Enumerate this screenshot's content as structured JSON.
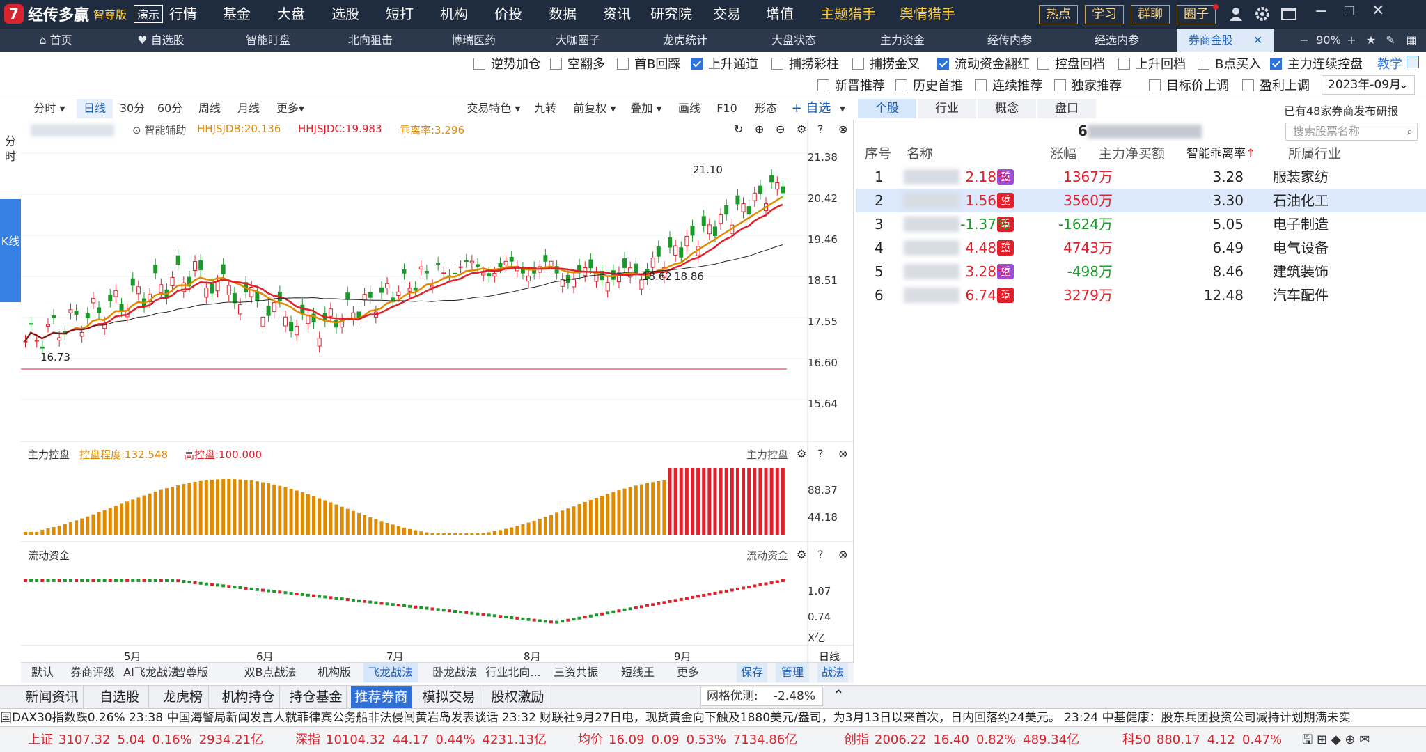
{
  "app": {
    "name": "经传多赢",
    "edition": "智尊版",
    "demo": "演示"
  },
  "menu": [
    "行情",
    "基金",
    "大盘",
    "选股",
    "短打",
    "机构",
    "价投",
    "数据",
    "资讯",
    "研究院",
    "交易",
    "增值"
  ],
  "menu_hl": [
    "主题猎手",
    "舆情猎手"
  ],
  "top_buttons": [
    "热点",
    "学习",
    "群聊",
    "圈子"
  ],
  "tabs": [
    "首页",
    "自选股",
    "智能盯盘",
    "北向狙击",
    "博瑞医药",
    "大咖圈子",
    "龙虎统计",
    "大盘状态",
    "主力资金",
    "经传内参",
    "经选内参",
    "券商金股"
  ],
  "zoom": "90%",
  "filters_row1": [
    {
      "label": "逆势加仓",
      "on": false
    },
    {
      "label": "空翻多",
      "on": false
    },
    {
      "label": "首B回踩",
      "on": false
    },
    {
      "label": "上升通道",
      "on": true
    },
    {
      "label": "捕捞彩柱",
      "on": false
    },
    {
      "label": "捕捞金叉",
      "on": false
    },
    {
      "label": "流动资金翻红",
      "on": true
    },
    {
      "label": "控盘回档",
      "on": false
    },
    {
      "label": "上升回档",
      "on": false
    },
    {
      "label": "B点买入",
      "on": false
    },
    {
      "label": "主力连续控盘",
      "on": true
    }
  ],
  "teach": "教学",
  "filters_row2": [
    {
      "label": "新晋推荐",
      "on": false
    },
    {
      "label": "历史首推",
      "on": false
    },
    {
      "label": "连续推荐",
      "on": false
    },
    {
      "label": "独家推荐",
      "on": false
    },
    {
      "label": "目标价上调",
      "on": false
    },
    {
      "label": "盈利上调",
      "on": false
    }
  ],
  "month_select": "2023年-09月",
  "chart_toolbar": [
    "分时",
    "日线",
    "30分",
    "60分",
    "周线",
    "月线",
    "更多",
    "交易特色",
    "九转",
    "前复权",
    "叠加",
    "画线",
    "F10",
    "形态"
  ],
  "add_watch": "+ 自选",
  "side_tabs": [
    "分时",
    "K线"
  ],
  "indicator": {
    "assist": "智能辅助",
    "db": "HHJSJDB:20.136",
    "dc": "HHJSJDC:19.983",
    "ratio": "乖离率:3.296"
  },
  "price_labels": {
    "high": "21.10",
    "low": "16.73",
    "mid_a": "18.62",
    "mid_b": "18.86"
  },
  "y_axis": [
    "21.38",
    "20.42",
    "19.46",
    "18.51",
    "17.55",
    "16.60",
    "15.64"
  ],
  "control_panel": {
    "title": "主力控盘",
    "degree": "控盘程度:132.548",
    "high": "高控盘:100.000",
    "axis": [
      "88.37",
      "44.18"
    ]
  },
  "flow_panel": {
    "title": "流动资金",
    "axis": [
      "1.07",
      "0.74"
    ],
    "unit": "X亿"
  },
  "x_axis": [
    "5月",
    "6月",
    "7月",
    "8月",
    "9月"
  ],
  "period": "日线",
  "chart_data": {
    "type": "candlestick",
    "title": "",
    "ylim": [
      15.64,
      21.38
    ],
    "x": [
      "5月",
      "6月",
      "7月",
      "8月",
      "9月"
    ],
    "annotated": {
      "high": 21.1,
      "low": 16.73
    }
  },
  "right_tabs": [
    "个股",
    "行业",
    "概念",
    "盘口"
  ],
  "report_note": "已有48家券商发布研报",
  "stock_code_prefix": "6",
  "search_placeholder": "搜索股票名称",
  "table_headers": [
    "序号",
    "名称",
    "涨幅",
    "主力净买额",
    "智能乖离率",
    "所属行业"
  ],
  "rows": [
    {
      "n": "1",
      "chg": "2.18%",
      "net": "1367万",
      "ratio": "3.28",
      "ind": "服装家纺",
      "tag": "重",
      "tagc": "#9a4fd6",
      "up": true,
      "netup": true
    },
    {
      "n": "2",
      "chg": "1.56%",
      "net": "3560万",
      "ratio": "3.30",
      "ind": "石油化工",
      "tag": "重",
      "tagc": "#e0202a",
      "up": true,
      "netup": true
    },
    {
      "n": "3",
      "chg": "-1.37%",
      "net": "-1624万",
      "ratio": "5.05",
      "ind": "电子制造",
      "tag": "重",
      "tagc": "#e0202a",
      "up": false,
      "netup": false
    },
    {
      "n": "4",
      "chg": "4.48%",
      "net": "4743万",
      "ratio": "6.49",
      "ind": "电气设备",
      "tag": "重",
      "tagc": "#e0202a",
      "up": true,
      "netup": true
    },
    {
      "n": "5",
      "chg": "3.28%",
      "net": "-498万",
      "ratio": "8.46",
      "ind": "建筑装饰",
      "tag": "重",
      "tagc": "#9a4fd6",
      "up": true,
      "netup": false
    },
    {
      "n": "6",
      "chg": "6.74%",
      "net": "3279万",
      "ratio": "12.48",
      "ind": "汽车配件",
      "tag": "重",
      "tagc": "#e0202a",
      "up": true,
      "netup": true
    }
  ],
  "strategy_tabs": [
    "默认",
    "券商评级",
    "AI飞龙战法",
    "智尊版",
    "双B点战法",
    "机构版",
    "飞龙战法",
    "卧龙战法",
    "行业北向...",
    "三资共振",
    "短线王",
    "更多"
  ],
  "strategy_buttons": [
    "保存",
    "管理",
    "战法"
  ],
  "bottom_tabs": [
    "新闻资讯",
    "自选股",
    "龙虎榜",
    "机构持仓",
    "持仓基金",
    "推荐券商",
    "模拟交易",
    "股权激励"
  ],
  "optimize": {
    "label": "网格优测:",
    "value": "-2.48%"
  },
  "ticker": "国DAX30指数跌0.26%        23:38 中国海警局新闻发言人就菲律宾公务船非法侵闯黄岩岛发表谈话        23:32 财联社9月27日电，现货黄金向下触及1880美元/盎司，为3月13日以来首次，日内回落约24美元。        23:24 中基健康：股东兵团投资公司减持计划期满未实",
  "indices": [
    {
      "name": "上证",
      "v": "3107.32",
      "c": "5.04",
      "p": "0.16%",
      "a": "2934.21亿"
    },
    {
      "name": "深指",
      "v": "10104.32",
      "c": "44.17",
      "p": "0.44%",
      "a": "4231.13亿"
    },
    {
      "name": "均价",
      "v": "16.09",
      "c": "0.09",
      "p": "0.53%",
      "a": "7134.86亿"
    },
    {
      "name": "创指",
      "v": "2006.22",
      "c": "16.40",
      "p": "0.82%",
      "a": "489.34亿"
    },
    {
      "name": "科50",
      "v": "880.17",
      "c": "4.12",
      "p": "0.47%",
      "a": ""
    }
  ]
}
